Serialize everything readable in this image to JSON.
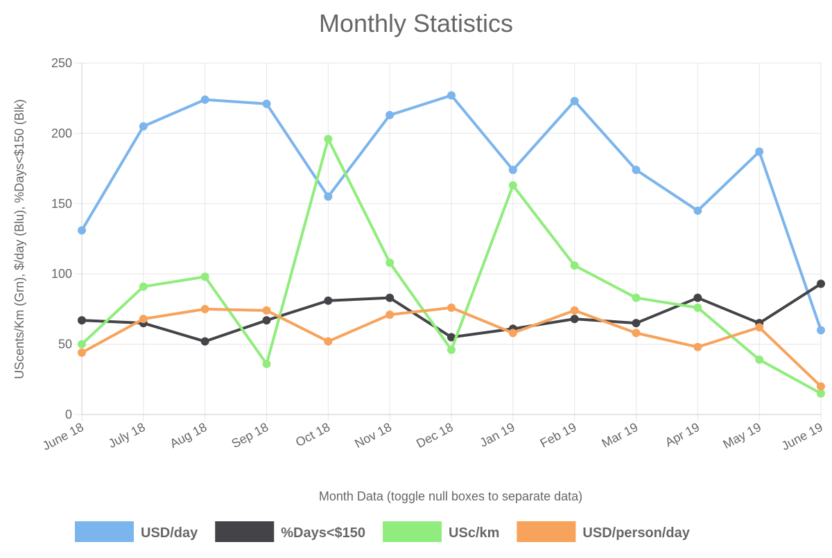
{
  "chart_data": {
    "type": "line",
    "title": "Monthly Statistics",
    "x_label": "Month Data (toggle null boxes to separate data)",
    "y_label": "UScents/Km (Grn), $/day (Blu), %Days<$150 (Blk)",
    "categories": [
      "June 18",
      "July 18",
      "Aug 18",
      "Sep 18",
      "Oct 18",
      "Nov 18",
      "Dec 18",
      "Jan 19",
      "Feb 19",
      "Mar 19",
      "Apr 19",
      "May 19",
      "June 19"
    ],
    "series": [
      {
        "name": "USD/day",
        "color": "#7cb5ec",
        "values": [
          131,
          205,
          224,
          221,
          155,
          213,
          227,
          174,
          223,
          174,
          145,
          187,
          60
        ]
      },
      {
        "name": "%Days<$150",
        "color": "#434348",
        "values": [
          67,
          65,
          52,
          67,
          81,
          83,
          55,
          61,
          68,
          65,
          83,
          65,
          93
        ]
      },
      {
        "name": "USc/km",
        "color": "#90ed7d",
        "values": [
          50,
          91,
          98,
          36,
          196,
          108,
          46,
          163,
          106,
          83,
          76,
          39,
          15
        ]
      },
      {
        "name": "USD/person/day",
        "color": "#f7a35c",
        "values": [
          44,
          68,
          75,
          74,
          52,
          71,
          76,
          58,
          74,
          58,
          48,
          62,
          20
        ]
      }
    ],
    "ylim": [
      0,
      250
    ],
    "yticks": [
      0,
      50,
      100,
      150,
      200,
      250
    ],
    "grid": true,
    "legend": "bottom"
  }
}
